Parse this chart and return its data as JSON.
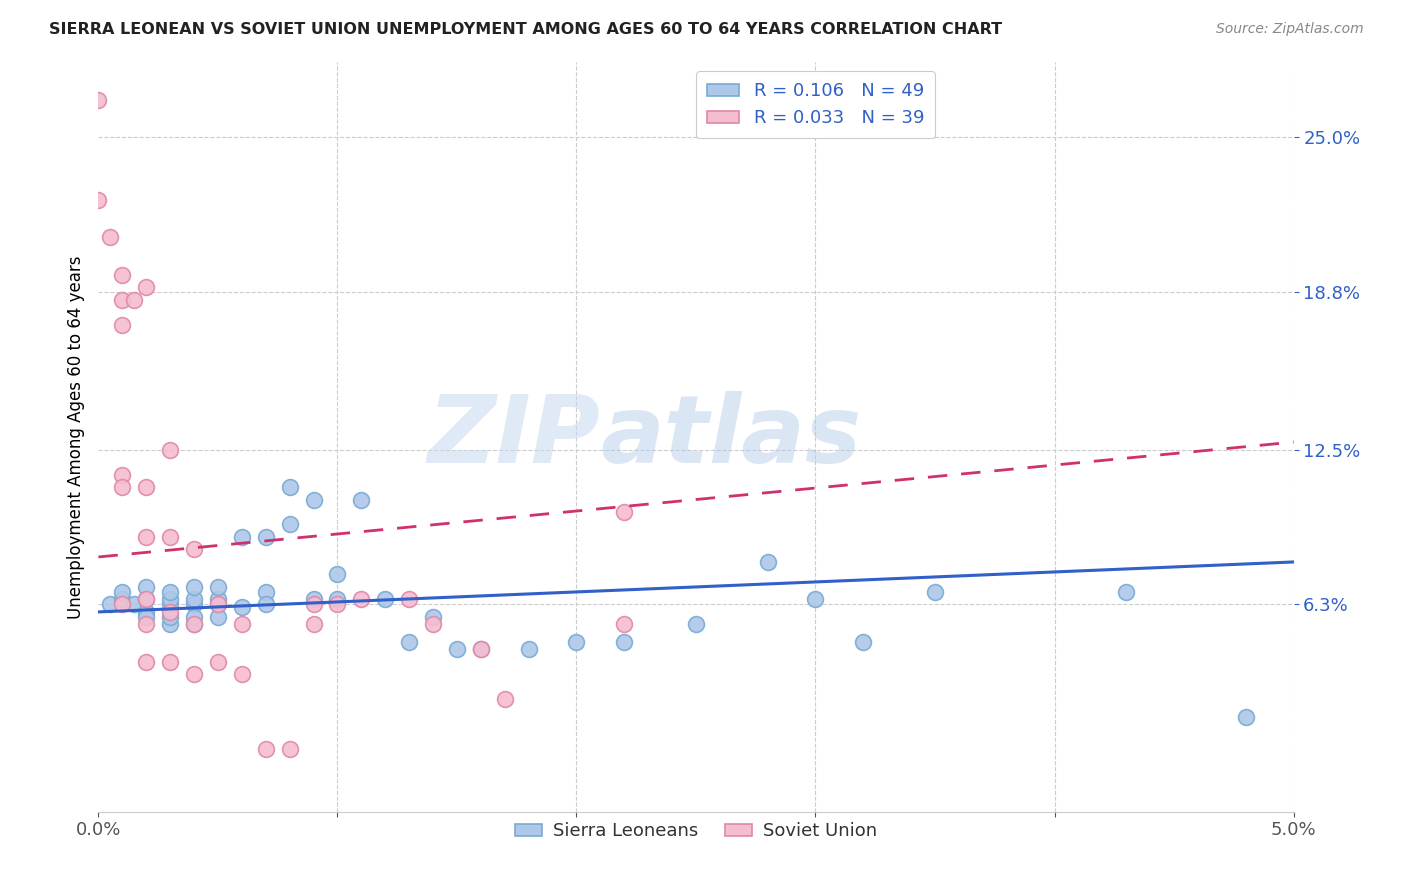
{
  "title": "SIERRA LEONEAN VS SOVIET UNION UNEMPLOYMENT AMONG AGES 60 TO 64 YEARS CORRELATION CHART",
  "source": "Source: ZipAtlas.com",
  "ylabel": "Unemployment Among Ages 60 to 64 years",
  "xlim": [
    0.0,
    0.05
  ],
  "ylim": [
    -0.02,
    0.28
  ],
  "yticks": [
    0.063,
    0.125,
    0.188,
    0.25
  ],
  "ytick_labels": [
    "6.3%",
    "12.5%",
    "18.8%",
    "25.0%"
  ],
  "xtick_positions": [
    0.0,
    0.01,
    0.02,
    0.03,
    0.04,
    0.05
  ],
  "xtick_labels": [
    "0.0%",
    "",
    "",
    "",
    "",
    "5.0%"
  ],
  "blue_R": 0.106,
  "blue_N": 49,
  "pink_R": 0.033,
  "pink_N": 39,
  "blue_label": "Sierra Leoneans",
  "pink_label": "Soviet Union",
  "blue_color": "#adc8e8",
  "blue_edge": "#7aaad4",
  "pink_color": "#f5bdd0",
  "pink_edge": "#e088a8",
  "blue_line_color": "#3060c8",
  "pink_line_color": "#d03070",
  "background_color": "#ffffff",
  "watermark_zip": "ZIP",
  "watermark_atlas": "atlas",
  "blue_x": [
    0.0005,
    0.001,
    0.001,
    0.0015,
    0.002,
    0.002,
    0.002,
    0.002,
    0.003,
    0.003,
    0.003,
    0.003,
    0.003,
    0.004,
    0.004,
    0.004,
    0.004,
    0.004,
    0.005,
    0.005,
    0.005,
    0.005,
    0.006,
    0.006,
    0.007,
    0.007,
    0.007,
    0.008,
    0.008,
    0.009,
    0.009,
    0.01,
    0.01,
    0.011,
    0.012,
    0.013,
    0.014,
    0.015,
    0.016,
    0.018,
    0.02,
    0.022,
    0.025,
    0.028,
    0.03,
    0.032,
    0.035,
    0.043,
    0.048
  ],
  "blue_y": [
    0.063,
    0.065,
    0.068,
    0.063,
    0.06,
    0.065,
    0.058,
    0.07,
    0.063,
    0.065,
    0.068,
    0.055,
    0.058,
    0.063,
    0.065,
    0.07,
    0.055,
    0.058,
    0.063,
    0.065,
    0.07,
    0.058,
    0.09,
    0.062,
    0.068,
    0.063,
    0.09,
    0.11,
    0.095,
    0.105,
    0.065,
    0.075,
    0.065,
    0.105,
    0.065,
    0.048,
    0.058,
    0.045,
    0.045,
    0.045,
    0.048,
    0.048,
    0.055,
    0.08,
    0.065,
    0.048,
    0.068,
    0.068,
    0.018
  ],
  "pink_x": [
    0.0,
    0.0,
    0.0005,
    0.001,
    0.001,
    0.001,
    0.001,
    0.001,
    0.001,
    0.0015,
    0.002,
    0.002,
    0.002,
    0.002,
    0.002,
    0.002,
    0.003,
    0.003,
    0.003,
    0.003,
    0.004,
    0.004,
    0.004,
    0.005,
    0.005,
    0.006,
    0.006,
    0.007,
    0.008,
    0.009,
    0.009,
    0.01,
    0.011,
    0.013,
    0.014,
    0.016,
    0.017,
    0.022,
    0.022
  ],
  "pink_y": [
    0.265,
    0.225,
    0.21,
    0.195,
    0.185,
    0.175,
    0.115,
    0.11,
    0.063,
    0.185,
    0.19,
    0.11,
    0.09,
    0.065,
    0.055,
    0.04,
    0.125,
    0.09,
    0.06,
    0.04,
    0.085,
    0.055,
    0.035,
    0.063,
    0.04,
    0.055,
    0.035,
    0.005,
    0.005,
    0.063,
    0.055,
    0.063,
    0.065,
    0.065,
    0.055,
    0.045,
    0.025,
    0.055,
    0.1
  ],
  "blue_trend_x0": 0.0,
  "blue_trend_y0": 0.06,
  "blue_trend_x1": 0.05,
  "blue_trend_y1": 0.08,
  "pink_trend_x0": 0.0,
  "pink_trend_y0": 0.082,
  "pink_trend_x1": 0.05,
  "pink_trend_y1": 0.128
}
